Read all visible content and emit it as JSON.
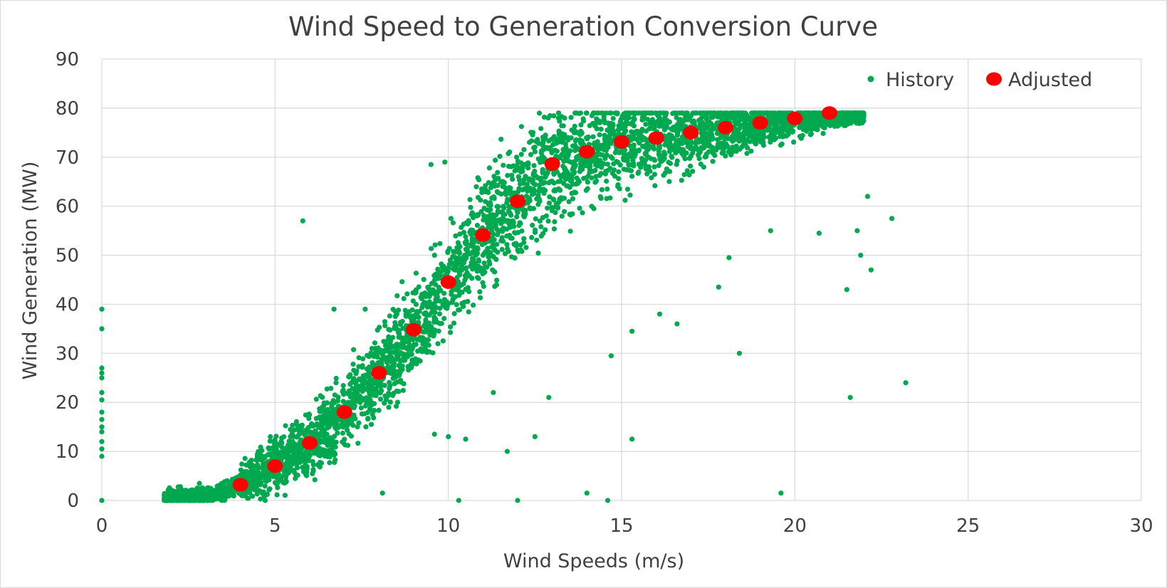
{
  "chart_data": {
    "type": "scatter",
    "title": "Wind Speed to Generation Conversion Curve",
    "xlabel": "Wind Speeds (m/s)",
    "ylabel": "Wind Generation (MW)",
    "xlim": [
      0,
      30
    ],
    "ylim": [
      0,
      90
    ],
    "xticks": [
      "0",
      "5",
      "10",
      "15",
      "20",
      "25",
      "30"
    ],
    "yticks": [
      "0",
      "10",
      "20",
      "30",
      "40",
      "50",
      "60",
      "70",
      "80",
      "90"
    ],
    "grid": true,
    "legend_position": "top-right",
    "colors": {
      "history": "#00a84f",
      "adjusted": "#ff0000",
      "grid": "#d9d9d9",
      "text": "#404040"
    },
    "series": [
      {
        "name": "History",
        "marker": "small-dot",
        "points": [
          [
            0,
            0
          ],
          [
            0,
            9
          ],
          [
            0,
            10.5
          ],
          [
            0,
            12
          ],
          [
            0,
            14
          ],
          [
            0,
            15
          ],
          [
            0,
            16.5
          ],
          [
            0,
            18
          ],
          [
            0,
            20.5
          ],
          [
            0,
            22
          ],
          [
            0,
            25
          ],
          [
            0,
            26
          ],
          [
            0,
            27
          ],
          [
            0,
            35
          ],
          [
            0,
            39
          ],
          [
            5.8,
            57
          ],
          [
            15.3,
            12.5
          ],
          [
            18.4,
            30
          ],
          [
            19.6,
            1.5
          ],
          [
            21.6,
            21
          ],
          [
            23.2,
            24
          ],
          [
            22.8,
            57.5
          ],
          [
            22.2,
            47
          ],
          [
            21.5,
            43
          ],
          [
            21.9,
            50
          ],
          [
            21.8,
            55
          ],
          [
            22.1,
            62
          ],
          [
            17.8,
            43.5
          ],
          [
            16.6,
            36
          ],
          [
            16.1,
            38
          ],
          [
            15.3,
            34.5
          ],
          [
            14.7,
            29.5
          ],
          [
            18.1,
            49.5
          ],
          [
            19.3,
            55
          ],
          [
            20.7,
            54.5
          ],
          [
            12.9,
            21
          ],
          [
            11.3,
            22
          ],
          [
            12.5,
            13
          ],
          [
            11.7,
            10
          ],
          [
            14.0,
            1.5
          ],
          [
            14.6,
            0
          ],
          [
            10.3,
            0
          ],
          [
            12.0,
            0
          ],
          [
            8.1,
            1.5
          ],
          [
            9.6,
            13.5
          ],
          [
            10.0,
            13
          ],
          [
            10.5,
            12.5
          ],
          [
            7.6,
            39
          ],
          [
            6.7,
            39
          ],
          [
            9.9,
            69
          ],
          [
            9.5,
            68.5
          ]
        ],
        "density_curve": [
          [
            1.8,
            0.5
          ],
          [
            2.5,
            0.6
          ],
          [
            3.0,
            1.0
          ],
          [
            3.5,
            1.8
          ],
          [
            4.0,
            3.2
          ],
          [
            4.5,
            4.8
          ],
          [
            5.0,
            7.0
          ],
          [
            5.5,
            9.2
          ],
          [
            6.0,
            11.7
          ],
          [
            6.5,
            14.6
          ],
          [
            7.0,
            18.0
          ],
          [
            7.5,
            21.8
          ],
          [
            8.0,
            26.0
          ],
          [
            8.5,
            30.3
          ],
          [
            9.0,
            34.8
          ],
          [
            9.5,
            39.6
          ],
          [
            10.0,
            44.5
          ],
          [
            10.5,
            49.3
          ],
          [
            11.0,
            54.1
          ],
          [
            11.5,
            57.8
          ],
          [
            12.0,
            61.0
          ],
          [
            12.5,
            65.0
          ],
          [
            13.0,
            68.6
          ],
          [
            13.5,
            70.0
          ],
          [
            14.0,
            71.1
          ],
          [
            14.5,
            72.2
          ],
          [
            15.0,
            73.1
          ],
          [
            15.5,
            73.5
          ],
          [
            16.0,
            73.9
          ],
          [
            17.0,
            75.0
          ],
          [
            18.0,
            76.0
          ],
          [
            19.0,
            77.0
          ],
          [
            20.0,
            77.6
          ],
          [
            21.0,
            78.3
          ],
          [
            21.8,
            78.6
          ]
        ]
      },
      {
        "name": "Adjusted",
        "marker": "large-dot",
        "x": [
          4,
          5,
          6,
          7,
          8,
          9,
          10,
          11,
          12,
          13,
          14,
          15,
          16,
          17,
          18,
          19,
          20,
          21
        ],
        "y": [
          3.2,
          7.0,
          11.7,
          18.0,
          26.0,
          34.8,
          44.5,
          54.1,
          61.0,
          68.6,
          71.1,
          73.1,
          73.9,
          75.0,
          76.0,
          77.0,
          77.9,
          79.0
        ]
      }
    ]
  }
}
